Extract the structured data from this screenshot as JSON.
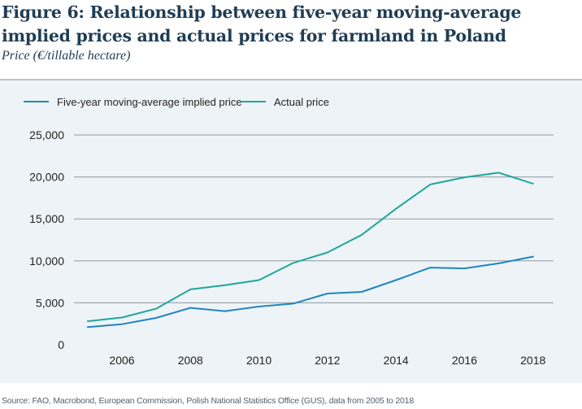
{
  "chart_data": {
    "type": "line",
    "title": "Figure 6: Relationship between five-year moving-average implied prices and actual prices for farmland in Poland",
    "subtitle": "Price (€/tillable hectare)",
    "xlabel": "",
    "ylabel": "Price (€/tillable hectare)",
    "x": [
      2005,
      2006,
      2007,
      2008,
      2009,
      2010,
      2011,
      2012,
      2013,
      2014,
      2015,
      2016,
      2017,
      2018
    ],
    "x_tick_values": [
      2006,
      2008,
      2010,
      2012,
      2014,
      2016,
      2018
    ],
    "x_tick_labels": [
      "2006",
      "2008",
      "2010",
      "2012",
      "2014",
      "2016",
      "2018"
    ],
    "xlim": [
      2004.6,
      2018.6
    ],
    "ylim": [
      0,
      25000
    ],
    "y_tick_values": [
      0,
      5000,
      10000,
      15000,
      20000,
      25000
    ],
    "y_tick_labels": [
      "0",
      "5,000",
      "10,000",
      "15,000",
      "20,000",
      "25,000"
    ],
    "grid": true,
    "legend_position": "top-left",
    "series": [
      {
        "name": "Five-year moving-average implied price",
        "color": "#1f86c0",
        "values": [
          2100,
          2450,
          3200,
          4400,
          4000,
          4550,
          4900,
          6100,
          6300,
          7700,
          9200,
          9100,
          9700,
          10500
        ]
      },
      {
        "name": "Actual price",
        "color": "#1fa79a",
        "values": [
          2800,
          3250,
          4300,
          6600,
          7100,
          7700,
          9750,
          11000,
          13100,
          16200,
          19100,
          19950,
          20500,
          19200
        ]
      }
    ],
    "source": "Source: FAO, Macrobond, European Commission, Polish National Statistics Office (GUS), data from 2005 to 2018"
  }
}
